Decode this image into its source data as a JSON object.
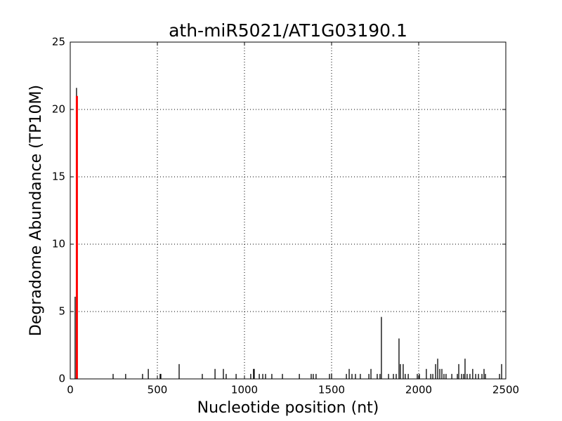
{
  "chart_data": {
    "type": "stem",
    "title": "ath-miR5021/AT1G03190.1",
    "x_label": "Nucleotide position (nt)",
    "y_label": "Degradome Abundance (TP10M)",
    "xlim": [
      0,
      2500
    ],
    "xticks": [
      0,
      500,
      1000,
      1500,
      2000,
      2500
    ],
    "ylim": [
      0,
      25
    ],
    "yticks": [
      0,
      5,
      10,
      15,
      20,
      25
    ],
    "grid": true,
    "series": [
      {
        "color": "#000000",
        "x": [
          28,
          36,
          246,
          318,
          415,
          448,
          516,
          520,
          625,
          758,
          831,
          879,
          895,
          952,
          1036,
          1052,
          1056,
          1085,
          1105,
          1121,
          1157,
          1218,
          1315,
          1383,
          1395,
          1411,
          1488,
          1500,
          1585,
          1601,
          1617,
          1637,
          1665,
          1714,
          1726,
          1762,
          1778,
          1786,
          1827,
          1855,
          1871,
          1887,
          1895,
          1911,
          1923,
          1940,
          1992,
          2004,
          2044,
          2069,
          2081,
          2097,
          2109,
          2121,
          2133,
          2145,
          2157,
          2190,
          2222,
          2230,
          2246,
          2258,
          2266,
          2278,
          2294,
          2310,
          2327,
          2343,
          2363,
          2375,
          2383,
          2464,
          2476
        ],
        "values": [
          6.1,
          21.6,
          0.37,
          0.37,
          0.37,
          0.74,
          0.37,
          0.37,
          1.1,
          0.37,
          0.74,
          0.74,
          0.37,
          0.37,
          0.37,
          0.74,
          0.74,
          0.37,
          0.37,
          0.37,
          0.37,
          0.37,
          0.37,
          0.37,
          0.37,
          0.37,
          0.37,
          0.37,
          0.37,
          0.74,
          0.37,
          0.37,
          0.37,
          0.37,
          0.74,
          0.37,
          0.37,
          4.6,
          0.37,
          0.37,
          0.37,
          3.0,
          1.1,
          1.1,
          0.37,
          0.37,
          0.37,
          0.37,
          0.74,
          0.37,
          0.37,
          1.1,
          1.5,
          0.74,
          0.74,
          0.37,
          0.37,
          0.37,
          0.37,
          1.1,
          0.37,
          0.37,
          1.5,
          0.37,
          0.37,
          0.74,
          0.37,
          0.37,
          0.37,
          0.74,
          0.37,
          0.37,
          1.1
        ]
      },
      {
        "color": "#ff0000",
        "x": [
          38
        ],
        "values": [
          21
        ]
      }
    ]
  }
}
